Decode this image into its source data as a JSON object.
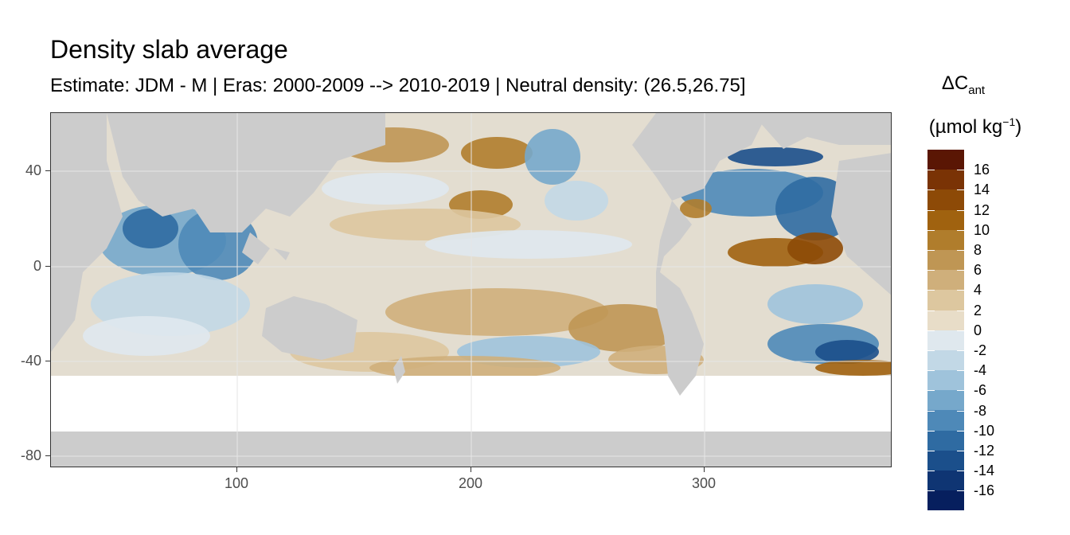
{
  "chart_data": {
    "type": "heatmap",
    "title": "Density slab average",
    "subtitle": "Estimate: JDM - M | Eras: 2000-2009 --> 2010-2019 | Neutral density: (26.5,26.75]",
    "xlabel": "",
    "ylabel": "",
    "x_ticks": [
      "100",
      "200",
      "300"
    ],
    "y_ticks": [
      "40",
      "0",
      "-40",
      "-80"
    ],
    "xlim": [
      20,
      380
    ],
    "ylim": [
      -85,
      65
    ],
    "legend": {
      "title_main": "ΔC",
      "title_sub": "ant",
      "title_units_base": "(µmol kg",
      "title_units_sup": "−1",
      "title_units_close": ")",
      "labels": [
        "16",
        "14",
        "12",
        "10",
        "8",
        "6",
        "4",
        "2",
        "0",
        "-2",
        "-4",
        "-6",
        "-8",
        "-10",
        "-12",
        "-14",
        "-16"
      ],
      "colors": [
        "#5a1604",
        "#7a3305",
        "#8d4a07",
        "#a0620f",
        "#b07d2c",
        "#bf9654",
        "#cfaf7b",
        "#ddc79f",
        "#e8ddc8",
        "#dfe8ee",
        "#c2d8e6",
        "#9fc3db",
        "#76a8cb",
        "#4e89b8",
        "#2f6ba2",
        "#1b4f8b",
        "#0f3573",
        "#061f5e"
      ]
    },
    "land_color": "#cccccc",
    "nodata_color": "#ffffff"
  }
}
